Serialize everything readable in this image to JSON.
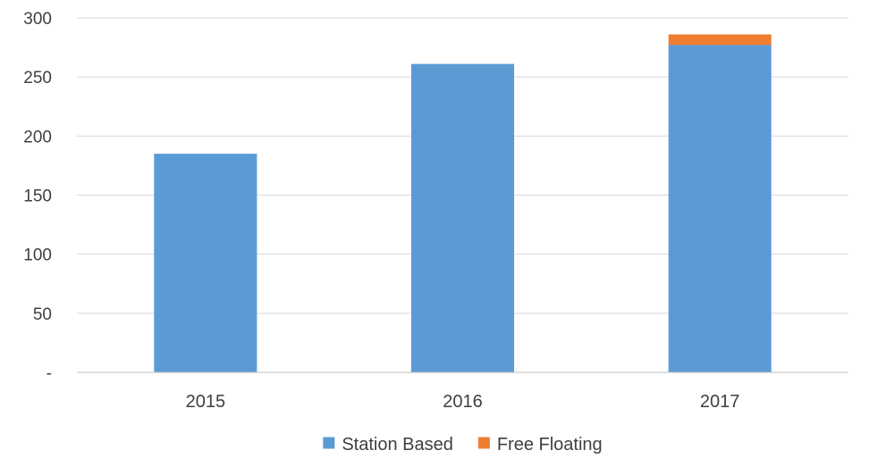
{
  "chart_data": {
    "type": "bar",
    "stacked": true,
    "categories": [
      "2015",
      "2016",
      "2017"
    ],
    "series": [
      {
        "name": "Station Based",
        "values": [
          185,
          261,
          277
        ],
        "color": "#5b9bd5"
      },
      {
        "name": "Free Floating",
        "values": [
          0,
          0,
          9
        ],
        "color": "#ed7d31"
      }
    ],
    "yticks": [
      {
        "value": 0,
        "label": "-"
      },
      {
        "value": 50,
        "label": "50"
      },
      {
        "value": 100,
        "label": "100"
      },
      {
        "value": 150,
        "label": "150"
      },
      {
        "value": 200,
        "label": "200"
      },
      {
        "value": 250,
        "label": "250"
      },
      {
        "value": 300,
        "label": "300"
      }
    ],
    "ylim": [
      0,
      300
    ],
    "grid": true,
    "legend_position": "bottom",
    "gridline_color": "#d9d9d9",
    "axis_line_color": "#bfbfbf",
    "text_color": "#404040"
  }
}
